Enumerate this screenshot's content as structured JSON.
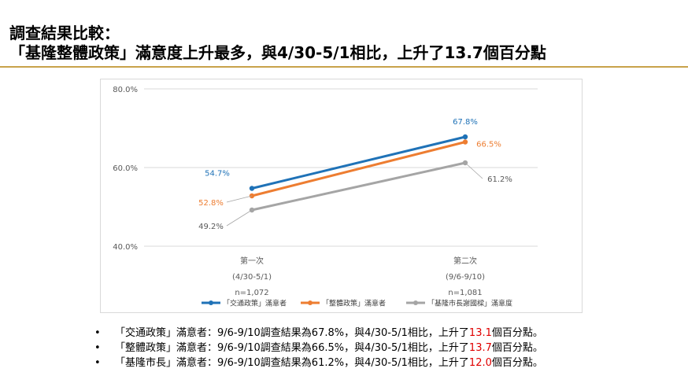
{
  "header": {
    "line1": "調查結果比較：",
    "line2": "「基隆整體政策」滿意度上升最多，與4/30-5/1相比，上升了13.7個百分點"
  },
  "chart_data": {
    "type": "line",
    "ylim": [
      40,
      80
    ],
    "yticks": [
      "80.0%",
      "60.0%",
      "40.0%"
    ],
    "ytick_values": [
      80,
      60,
      40
    ],
    "categories": [
      {
        "label": "第一次",
        "dates": "(4/30-5/1)",
        "n": "n=1,072"
      },
      {
        "label": "第二次",
        "dates": "(9/6-9/10)",
        "n": "n=1,081"
      }
    ],
    "series": [
      {
        "name": "「交通政策」滿意者",
        "values": [
          54.7,
          67.8
        ],
        "labels": [
          "54.7%",
          "67.8%"
        ],
        "color": "#1f72b7"
      },
      {
        "name": "「整體政策」滿意者",
        "values": [
          52.8,
          66.5
        ],
        "labels": [
          "52.8%",
          "66.5%"
        ],
        "color": "#ed7d31"
      },
      {
        "name": "「基隆市長謝國樑」滿意度",
        "values": [
          49.2,
          61.2
        ],
        "labels": [
          "49.2%",
          "61.2%"
        ],
        "color": "#a5a5a5"
      }
    ],
    "grid": true,
    "legend": "bottom"
  },
  "bullets": [
    {
      "pre": "「交通政策」滿意者：9/6-9/10調查結果為67.8%，與4/30-5/1相比，上升了",
      "num": "13.1",
      "post": "個百分點。"
    },
    {
      "pre": "「整體政策」滿意者：9/6-9/10調查結果為66.5%，與4/30-5/1相比，上升了",
      "num": "13.7",
      "post": "個百分點。"
    },
    {
      "pre": "「基隆市長」滿意者：9/6-9/10調查結果為61.2%，與4/30-5/1相比，上升了",
      "num": "12.0",
      "post": "個百分點。"
    }
  ],
  "bullet_marker": "•"
}
